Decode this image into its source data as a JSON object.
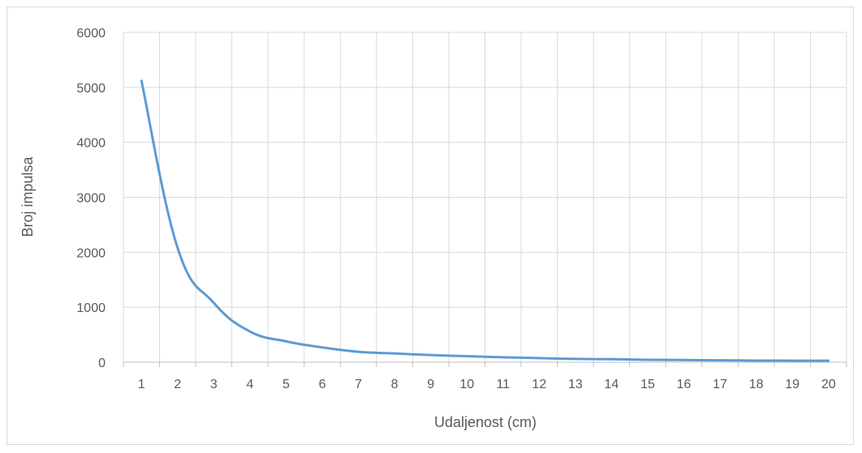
{
  "chart_data": {
    "type": "line",
    "title": "",
    "xlabel": "Udaljenost (cm)",
    "ylabel": "Broj impulsa",
    "categories": [
      "1",
      "2",
      "3",
      "4",
      "5",
      "6",
      "7",
      "8",
      "9",
      "10",
      "11",
      "12",
      "13",
      "14",
      "15",
      "16",
      "17",
      "18",
      "19",
      "20"
    ],
    "series": [
      {
        "values": [
          5120,
          2080,
          1080,
          560,
          380,
          270,
          190,
          160,
          130,
          110,
          90,
          75,
          60,
          55,
          45,
          40,
          35,
          30,
          28,
          28
        ],
        "color": "#5b9bd5"
      }
    ],
    "yticks": [
      "0",
      "1000",
      "2000",
      "3000",
      "4000",
      "5000",
      "6000"
    ],
    "ylim": [
      0,
      6000
    ],
    "grid": true,
    "legend": "none"
  }
}
